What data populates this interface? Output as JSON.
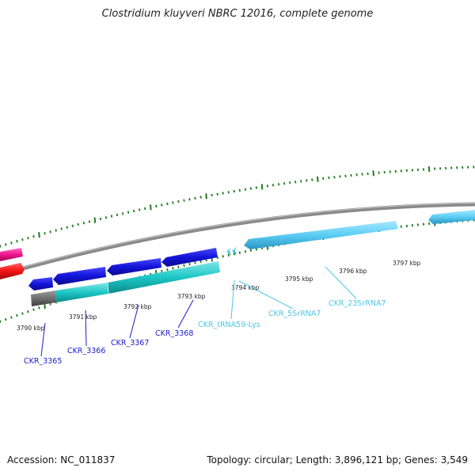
{
  "title": "Clostridium kluyveri NBRC 12016, complete genome",
  "footer": {
    "accession": "Accession: NC_011837",
    "summary": "Topology: circular; Length: 3,896,121 bp; Genes: 3,549"
  },
  "axis_labels": [
    "3790 kbp",
    "3791 kbp",
    "3792 kbp",
    "3793 kbp",
    "3794 kbp",
    "3795 kbp",
    "3796 kbp",
    "3797 kbp"
  ],
  "genes": [
    {
      "name": "CKR_3365",
      "color": "#1a1acc"
    },
    {
      "name": "CKR_3366",
      "color": "#1a1acc"
    },
    {
      "name": "CKR_3367",
      "color": "#1a1acc"
    },
    {
      "name": "CKR_3368",
      "color": "#1a1acc"
    },
    {
      "name": "CKR_tRNA59-Lys",
      "color": "#4cc6e8"
    },
    {
      "name": "CKR_5SrRNA7",
      "color": "#4cc6e8"
    },
    {
      "name": "CKR_23SrRNA7",
      "color": "#4cc6e8"
    }
  ],
  "colors": {
    "cds": "#1414d8",
    "rna": "#5bcdf5",
    "cog": "#1cc6c6",
    "gray": "#6e6e6e",
    "backbone": "#8a8a8a",
    "ticks": "#1f7a1f",
    "pink": "#f0148c",
    "red": "#f01414"
  }
}
